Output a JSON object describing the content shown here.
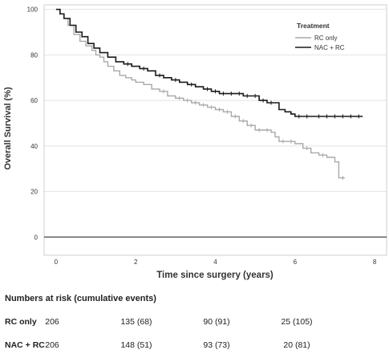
{
  "chart_data": {
    "type": "line",
    "subtype": "kaplan-meier-step",
    "xlabel": "Time since surgery (years)",
    "ylabel": "Overall Survival (%)",
    "xlim": [
      -0.3,
      8.3
    ],
    "ylim": [
      -8,
      102
    ],
    "x_ticks": [
      0,
      2,
      4,
      6,
      8
    ],
    "y_ticks": [
      0,
      20,
      40,
      60,
      80,
      100
    ],
    "grid": "horizontal",
    "legend": {
      "title": "Treatment",
      "placement": "top-right"
    },
    "series": [
      {
        "name": "RC only",
        "color": "#a9a9a9",
        "x": [
          0,
          0.1,
          0.2,
          0.3,
          0.45,
          0.6,
          0.75,
          0.9,
          1.0,
          1.1,
          1.2,
          1.3,
          1.45,
          1.6,
          1.75,
          1.9,
          2.0,
          2.2,
          2.4,
          2.6,
          2.8,
          3.0,
          3.2,
          3.4,
          3.6,
          3.8,
          4.0,
          4.2,
          4.4,
          4.6,
          4.8,
          5.0,
          5.2,
          5.4,
          5.5,
          5.6,
          5.8,
          6.0,
          6.2,
          6.4,
          6.6,
          6.8,
          7.0,
          7.1,
          7.25
        ],
        "y": [
          100,
          98,
          96,
          93,
          89,
          86,
          84,
          82,
          80,
          79,
          77,
          75,
          73,
          71,
          70,
          69,
          68,
          67,
          65,
          64,
          62,
          61,
          60,
          59,
          58,
          57,
          56,
          55,
          53,
          51,
          49,
          47,
          47,
          46,
          44,
          42,
          42,
          41,
          39,
          37,
          36,
          35,
          33,
          26,
          26
        ],
        "censor_x": [
          2.7,
          3.1,
          3.3,
          3.5,
          3.7,
          3.9,
          4.1,
          4.3,
          4.5,
          4.7,
          4.9,
          5.1,
          5.3,
          5.7,
          5.9,
          6.3,
          6.7,
          7.2
        ]
      },
      {
        "name": "NAC + RC",
        "color": "#1a1a1a",
        "x": [
          0,
          0.1,
          0.2,
          0.35,
          0.5,
          0.65,
          0.8,
          0.95,
          1.1,
          1.3,
          1.5,
          1.7,
          1.9,
          2.1,
          2.3,
          2.5,
          2.7,
          2.9,
          3.1,
          3.3,
          3.5,
          3.7,
          3.9,
          4.1,
          4.3,
          4.5,
          4.7,
          4.9,
          5.1,
          5.3,
          5.5,
          5.6,
          5.75,
          5.9,
          6.0,
          6.2,
          6.5,
          7.0,
          7.3,
          7.7
        ],
        "y": [
          100,
          98,
          96,
          93,
          90,
          88,
          85,
          83,
          81,
          79,
          77,
          76,
          75,
          74,
          73,
          71,
          70,
          69,
          68,
          67,
          66,
          65,
          64,
          63,
          63,
          63,
          62,
          62,
          60,
          59,
          59,
          56,
          55,
          54,
          53,
          53,
          53,
          53,
          53,
          53
        ],
        "censor_x": [
          1.8,
          2.2,
          2.6,
          3.0,
          3.4,
          3.8,
          4.0,
          4.2,
          4.4,
          4.6,
          4.8,
          5.0,
          5.2,
          5.4,
          6.1,
          6.3,
          6.6,
          6.8,
          7.0,
          7.2,
          7.4,
          7.6
        ]
      }
    ]
  },
  "risk_table": {
    "title": "Numbers at risk (cumulative events)",
    "rows": [
      {
        "label": "RC only",
        "values": [
          "206",
          "135 (68)",
          "90 (91)",
          "25 (105)"
        ]
      },
      {
        "label": "NAC + RC",
        "values": [
          "206",
          "148 (51)",
          "93 (73)",
          "20 (81)"
        ]
      }
    ]
  }
}
